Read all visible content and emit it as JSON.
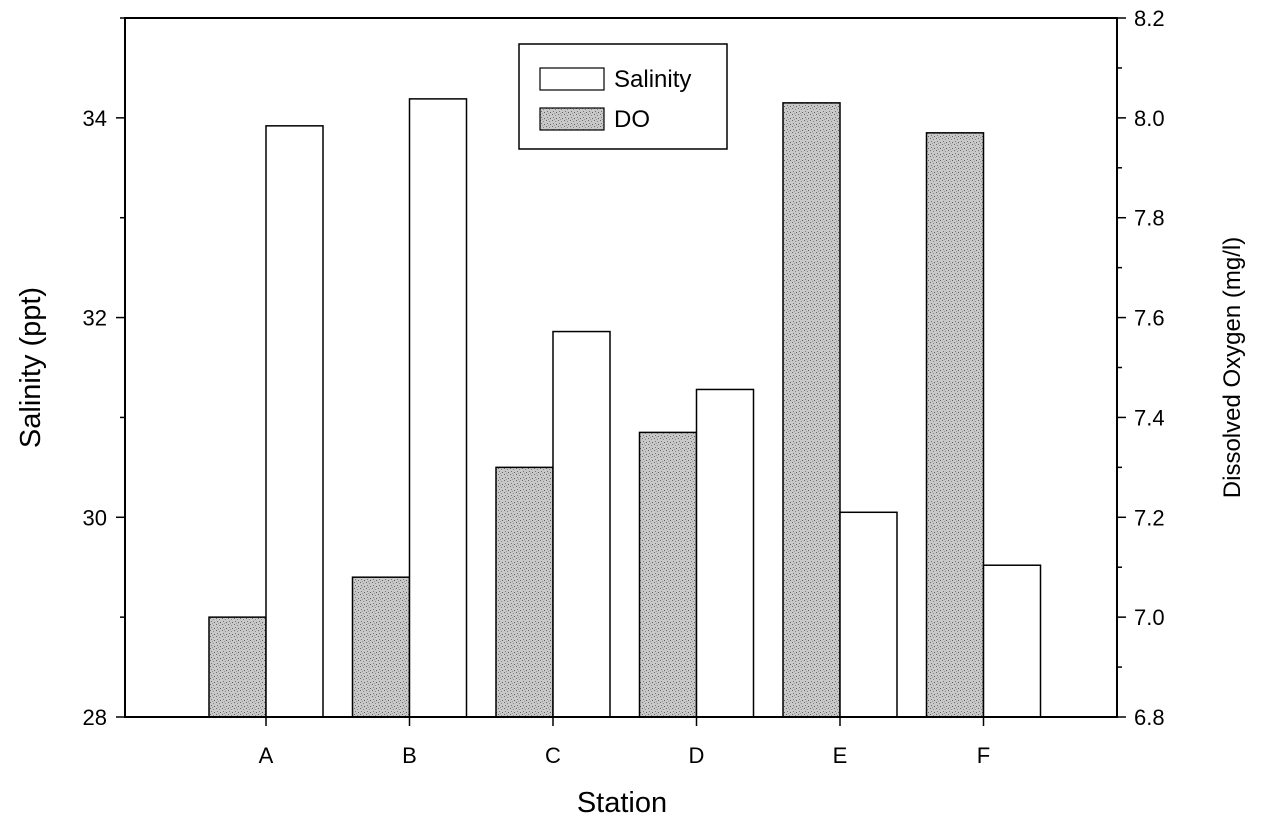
{
  "chart_data": {
    "type": "bar",
    "categories": [
      "A",
      "B",
      "C",
      "D",
      "E",
      "F"
    ],
    "series": [
      {
        "name": "DO",
        "axis": "right",
        "values": [
          7.0,
          7.08,
          7.3,
          7.37,
          8.03,
          7.97
        ],
        "fill": "#c4c4c4",
        "pattern": "stippled"
      },
      {
        "name": "Salinity",
        "axis": "left",
        "values": [
          33.92,
          34.19,
          31.86,
          31.28,
          30.05,
          29.52
        ],
        "fill": "#ffffff"
      }
    ],
    "xlabel": "Station",
    "ylabel": "Salinity (ppt)",
    "y2label": "Dissolved Oxygen (mg/l)",
    "ylim": [
      28,
      35
    ],
    "y2lim": [
      6.8,
      8.2
    ],
    "yticks": [
      28,
      30,
      32,
      34
    ],
    "y2ticks": [
      6.8,
      7.0,
      7.2,
      7.4,
      7.6,
      7.8,
      8.0,
      8.2
    ],
    "legend": {
      "placement": "top-center",
      "order": [
        "Salinity",
        "DO"
      ]
    },
    "grid": false
  }
}
